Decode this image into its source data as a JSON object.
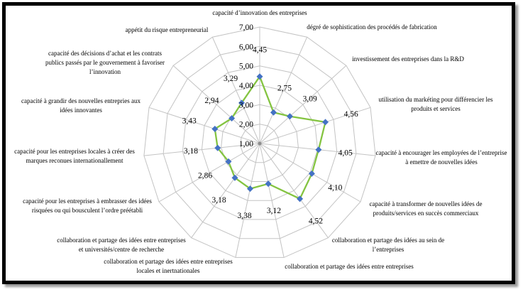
{
  "frame": {
    "border_color": "#000000",
    "background_color": "#ffffff"
  },
  "chart_data": {
    "type": "radar",
    "title": "",
    "legend": "none",
    "grid": true,
    "scale": {
      "min": 1,
      "max": 7,
      "step": 1,
      "tick_labels": [
        "1,00",
        "2,00",
        "3,00",
        "4,00",
        "5,00",
        "6,00",
        "7,00"
      ]
    },
    "colors": {
      "line": "#84C441",
      "marker": "#4472C4",
      "grid": "#C3C3C3",
      "center_dot": "#8C8C8C",
      "text": "#000000"
    },
    "axes": [
      {
        "label_lines": [
          "capacité d’innovation des entreprises"
        ],
        "value": 4.45,
        "value_label": "4,45"
      },
      {
        "label_lines": [
          "dégré de sophistication des procédés de fabrication"
        ],
        "value": 2.75,
        "value_label": "2,75"
      },
      {
        "label_lines": [
          "investissement des entreprises dans la R&D"
        ],
        "value": 3.09,
        "value_label": "3,09"
      },
      {
        "label_lines": [
          "utilisation du markéting pour différencier les",
          "produits et services"
        ],
        "value": 4.56,
        "value_label": "4,56"
      },
      {
        "label_lines": [
          "capacité à encourager les employées de l’entreprise",
          "à emettre de nouvelles idées"
        ],
        "value": 4.05,
        "value_label": "4,05"
      },
      {
        "label_lines": [
          "capacité à transformer de nouvelles idées de",
          "produits/services en succès commerciaux"
        ],
        "value": 4.1,
        "value_label": "4,10"
      },
      {
        "label_lines": [
          "collaboration et partage des idées au sein de",
          "l’entreprises"
        ],
        "value": 4.52,
        "value_label": "4,52"
      },
      {
        "label_lines": [
          "collaboration et partage des idées entre entreprises"
        ],
        "value": 3.12,
        "value_label": "3,12"
      },
      {
        "label_lines": [
          "collaboration et partage des idées entre entreprises",
          "locales et inertnationales"
        ],
        "value": 3.38,
        "value_label": "3,38"
      },
      {
        "label_lines": [
          "collaboration et partage des idées entre entreprises",
          "et universités/centre de recherche"
        ],
        "value": 3.18,
        "value_label": "3,18"
      },
      {
        "label_lines": [
          "capacité pour les entreprises à embrasser des idées",
          "risquées ou qui bousculent l’ordre préétabli"
        ],
        "value": 2.86,
        "value_label": "2,86"
      },
      {
        "label_lines": [
          "capacité pour les entreprises locales à créer des",
          "marques reconues internationallement"
        ],
        "value": 3.18,
        "value_label": "3,18"
      },
      {
        "label_lines": [
          "capacité à grandir des nouvelles entrepries aux",
          "idées innovantes"
        ],
        "value": 3.43,
        "value_label": "3,43"
      },
      {
        "label_lines": [
          "capacité des décisions d’achat et les contrats",
          "publics passés par le gouvernement à favoriser",
          "l’innovation"
        ],
        "value": 2.94,
        "value_label": "2,94"
      },
      {
        "label_lines": [
          "appétit du risque entrepreneurial"
        ],
        "value": 3.29,
        "value_label": "3,29"
      }
    ]
  }
}
